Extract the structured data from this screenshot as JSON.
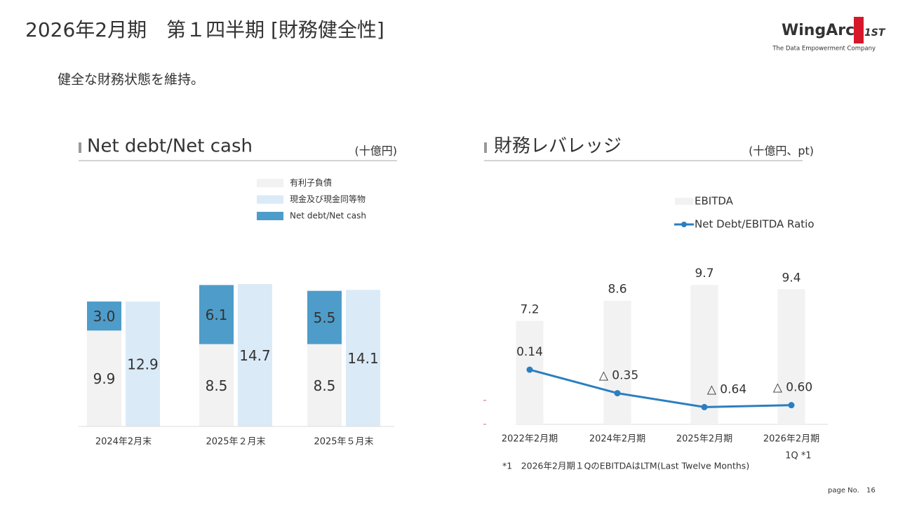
{
  "title": "2026年2月期　第１四半期 [財務健全性]",
  "subtitle": "健全な財務状態を維持。",
  "logo": {
    "name": "WingArc",
    "mark": "1ST",
    "tagline": "The Data Empowerment Company"
  },
  "page": {
    "label": "page No.",
    "number": "16"
  },
  "chart_data": [
    {
      "type": "bar",
      "title": "Net debt/Net cash",
      "unit": "(十億円)",
      "categories": [
        "2024年2月末",
        "2025年２月末",
        "2025年５月末"
      ],
      "stacks": [
        [
          0,
          2
        ],
        [
          1
        ]
      ],
      "series": [
        {
          "name": "有利子負債",
          "color": "#f2f2f2",
          "label_color": "#222222",
          "values": [
            9.9,
            8.5,
            8.5
          ]
        },
        {
          "name": "現金及び現金同等物",
          "color": "#dbeaf7",
          "label_color": "#222222",
          "values": [
            12.9,
            14.7,
            14.1
          ]
        },
        {
          "name": "Net debt/Net cash",
          "color": "#4e9cc9",
          "label_color": "#ffffff",
          "values": [
            3.0,
            6.1,
            5.5
          ],
          "value_labels": [
            "3.0",
            "6.1",
            "5.5"
          ]
        }
      ]
    },
    {
      "type": "bar_line",
      "title": "財務レバレッジ",
      "unit": "(十億円、pt)",
      "categories": [
        "2022年2月期",
        "2024年2月期",
        "2025年2月期",
        "2026年2月期"
      ],
      "category_note": "1Q *1",
      "ylim": [
        0,
        10
      ],
      "y2lim": [
        -1,
        2
      ],
      "y2ticks": [
        -1,
        -0.5
      ],
      "series": [
        {
          "name": "EBITDA",
          "type": "bar",
          "color": "#f2f2f2",
          "values": [
            7.2,
            8.6,
            9.7,
            9.4
          ]
        },
        {
          "name": "Net Debt/EBITDA Ratio",
          "type": "line",
          "axis": "y2",
          "color": "#2b7fc0",
          "values": [
            0.14,
            -0.35,
            -0.64,
            -0.6
          ],
          "value_labels": [
            "0.14",
            "△ 0.35",
            "△ 0.64",
            "△ 0.60"
          ]
        }
      ],
      "footnote": "*1　2026年2月期１QのEBITDAはLTM(Last Twelve Months)"
    }
  ]
}
